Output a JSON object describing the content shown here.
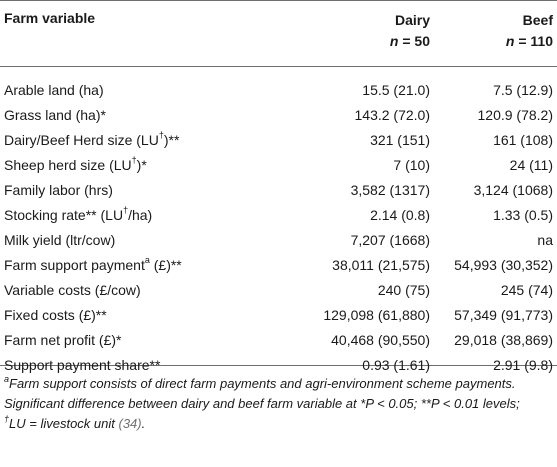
{
  "table": {
    "headers": {
      "variable": "Farm variable",
      "dairy": "Dairy",
      "dairy_n_label": "n",
      "dairy_n_value": " = 50",
      "beef": "Beef",
      "beef_n_label": "n",
      "beef_n_value": " = 110"
    },
    "rows": [
      {
        "label": "Arable land (ha)",
        "sup": "",
        "suffix": "",
        "dairy": "15.5 (21.0)",
        "beef": "7.5 (12.9)"
      },
      {
        "label": "Grass land (ha)",
        "sup": "",
        "suffix": "*",
        "dairy": "143.2 (72.0)",
        "beef": "120.9 (78.2)"
      },
      {
        "label": "Dairy/Beef Herd size (LU",
        "sup": "†",
        "suffix": ")**",
        "dairy": "321 (151)",
        "beef": "161 (108)"
      },
      {
        "label": "Sheep herd size (LU",
        "sup": "†",
        "suffix": ")*",
        "dairy": "7 (10)",
        "beef": "24 (11)"
      },
      {
        "label": "Family labor (hrs)",
        "sup": "",
        "suffix": "",
        "dairy": "3,582 (1317)",
        "beef": "3,124 (1068)"
      },
      {
        "label": "Stocking rate** (LU",
        "sup": "†",
        "suffix": "/ha)",
        "dairy": "2.14 (0.8)",
        "beef": "1.33 (0.5)"
      },
      {
        "label": "Milk yield (ltr/cow)",
        "sup": "",
        "suffix": "",
        "dairy": "7,207 (1668)",
        "beef": "na"
      },
      {
        "label": "Farm support payment",
        "sup": "a",
        "suffix": " (£)**",
        "dairy": "38,011 (21,575)",
        "beef": "54,993 (30,352)"
      },
      {
        "label": "Variable costs (£/cow)",
        "sup": "",
        "suffix": "",
        "dairy": "240 (75)",
        "beef": "245 (74)"
      },
      {
        "label": "Fixed costs (£)**",
        "sup": "",
        "suffix": "",
        "dairy": "129,098 (61,880)",
        "beef": "57,349 (91,773)"
      },
      {
        "label": "Farm net profit (£)*",
        "sup": "",
        "suffix": "",
        "dairy": "40,468 (90,550)",
        "beef": "29,018 (38,869)"
      },
      {
        "label": "Support payment share**",
        "sup": "",
        "suffix": "",
        "dairy": "0.93 (1.61)",
        "beef": "2.91 (9.8)"
      }
    ]
  },
  "footnotes": {
    "a_marker": "a",
    "a_text": "Farm support consists of direct farm payments and agri-environment scheme payments.",
    "sig_text": "Significant difference between dairy and beef farm variable at *P < 0.05; **P < 0.01 levels;",
    "lu_marker": "†",
    "lu_text": "LU = livestock unit ",
    "lu_cite": "(34)",
    "lu_end": "."
  }
}
